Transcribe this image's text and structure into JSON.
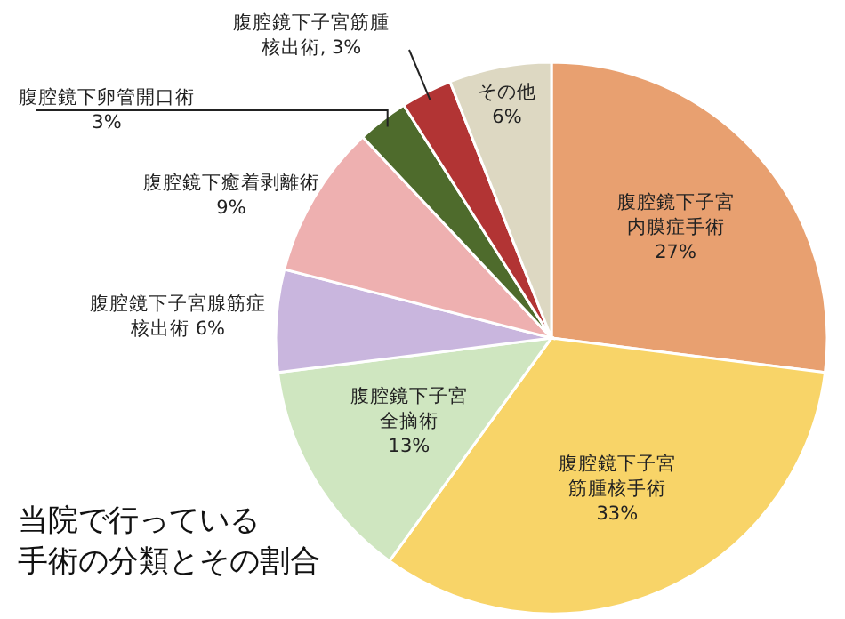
{
  "chart_data": {
    "type": "pie",
    "title": "当院で行っている",
    "subtitle": "手術の分類とその割合",
    "categories": [
      "腹腔鏡下子宮内膜症手術",
      "腹腔鏡下子宮筋腫核手術",
      "腹腔鏡下子宮全摘術",
      "腹腔鏡下子宮腺筋症核出術",
      "腹腔鏡下癒着剥離術",
      "腹腔鏡下卵管開口術",
      "腹腔鏡下子宮筋腫核出術",
      "その他"
    ],
    "values": [
      27,
      33,
      13,
      6,
      9,
      3,
      3,
      6
    ],
    "value_labels": [
      "27%",
      "33%",
      "13%",
      "6%",
      "9%",
      "3%",
      "3%",
      "6%"
    ],
    "colors": [
      "#e8a070",
      "#f8d468",
      "#cfe6c0",
      "#c9b6de",
      "#eeb0b0",
      "#4e6b2c",
      "#b23434",
      "#ddd8c2"
    ]
  }
}
